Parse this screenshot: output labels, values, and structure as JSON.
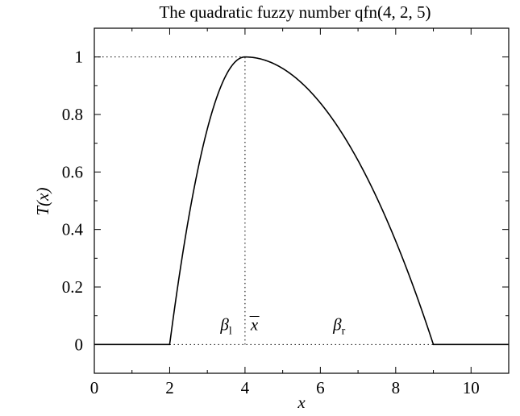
{
  "chart_data": {
    "type": "line",
    "title": "The quadratic fuzzy number qfn(4, 2, 5)",
    "xlabel": "x",
    "ylabel": "T(x)",
    "xlim": [
      0,
      11
    ],
    "ylim": [
      -0.1,
      1.1
    ],
    "x_ticks": [
      0,
      2,
      4,
      6,
      8,
      10
    ],
    "y_ticks": [
      0,
      0.2,
      0.4,
      0.6,
      0.8,
      1
    ],
    "x_tick_labels": [
      "0",
      "2",
      "4",
      "6",
      "8",
      "10"
    ],
    "y_tick_labels": [
      "0",
      "0.2",
      "0.4",
      "0.6",
      "0.8",
      "1"
    ],
    "grid": false,
    "legend": "none",
    "series": [
      {
        "x": [
          0,
          2,
          2.25,
          2.5,
          2.75,
          3,
          3.25,
          3.5,
          3.75,
          4,
          4.5,
          5,
          5.5,
          6,
          6.5,
          7,
          7.5,
          8,
          8.5,
          9,
          11
        ],
        "values": [
          0,
          0,
          0.234,
          0.438,
          0.609,
          0.75,
          0.859,
          0.938,
          0.984,
          1,
          0.99,
          0.96,
          0.91,
          0.84,
          0.75,
          0.64,
          0.51,
          0.36,
          0.19,
          0,
          0
        ]
      }
    ],
    "reference_lines": [
      {
        "from": [
          0,
          1
        ],
        "to": [
          4,
          1
        ],
        "style": "dotted"
      },
      {
        "from": [
          4,
          0
        ],
        "to": [
          4,
          1
        ],
        "style": "dotted"
      },
      {
        "from": [
          2,
          0
        ],
        "to": [
          9,
          0
        ],
        "style": "dotted"
      }
    ],
    "annotations": [
      {
        "base": "β",
        "sub": "l",
        "at": [
          3.5,
          0.05
        ]
      },
      {
        "base": "x",
        "overline": true,
        "at": [
          4.25,
          0.05
        ]
      },
      {
        "base": "β",
        "sub": "r",
        "at": [
          6.5,
          0.05
        ]
      }
    ]
  }
}
